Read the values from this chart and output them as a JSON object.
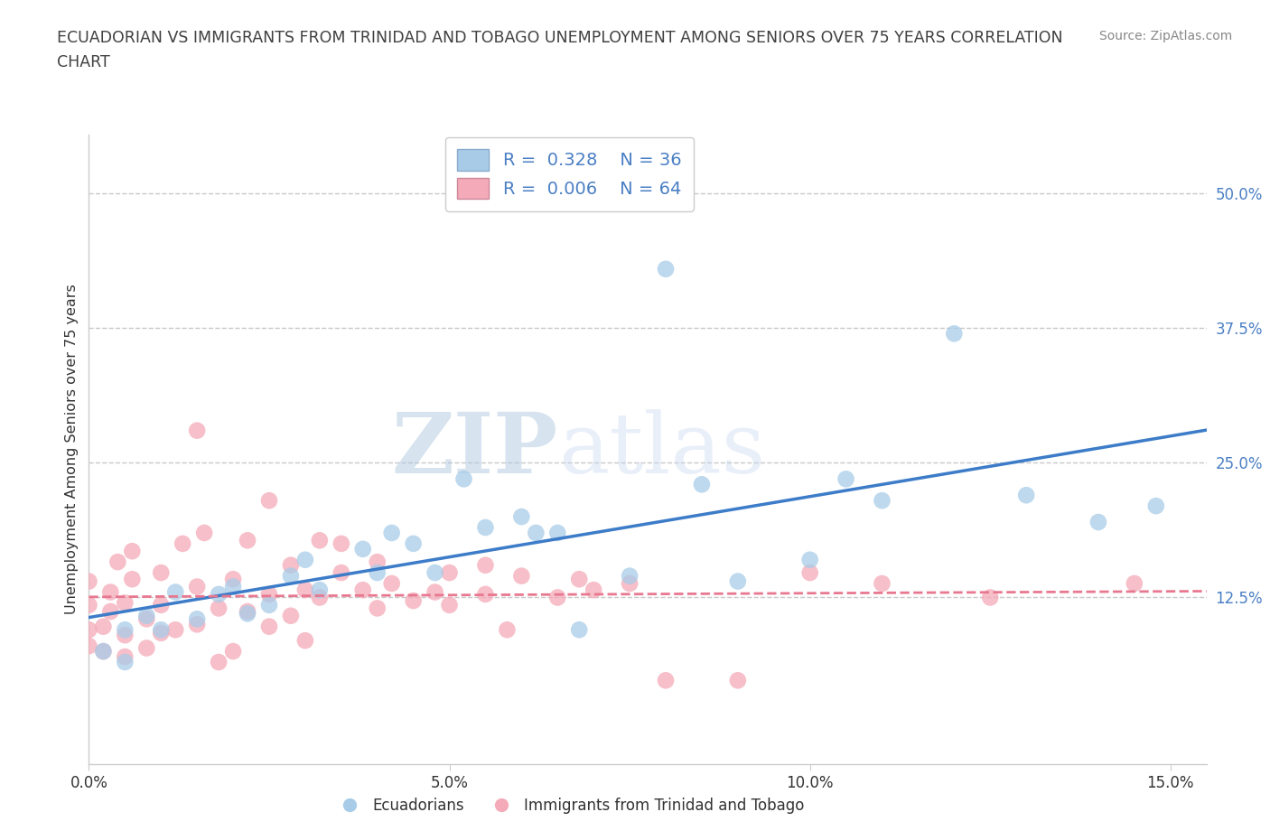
{
  "title_line1": "ECUADORIAN VS IMMIGRANTS FROM TRINIDAD AND TOBAGO UNEMPLOYMENT AMONG SENIORS OVER 75 YEARS CORRELATION",
  "title_line2": "CHART",
  "source": "Source: ZipAtlas.com",
  "ylabel": "Unemployment Among Seniors over 75 years",
  "xlim": [
    0.0,
    0.155
  ],
  "ylim": [
    -0.03,
    0.555
  ],
  "xticks": [
    0.0,
    0.05,
    0.1,
    0.15
  ],
  "xticklabels": [
    "0.0%",
    "5.0%",
    "10.0%",
    "15.0%"
  ],
  "ytick_positions": [
    0.0,
    0.125,
    0.25,
    0.375,
    0.5
  ],
  "yticklabels": [
    "",
    "12.5%",
    "25.0%",
    "37.5%",
    "50.0%"
  ],
  "hlines": [
    0.125,
    0.25,
    0.375,
    0.5
  ],
  "R_blue": 0.328,
  "N_blue": 36,
  "R_pink": 0.006,
  "N_pink": 64,
  "color_blue": "#a8cce8",
  "color_pink": "#f4aab8",
  "line_blue": "#3c7cc8",
  "line_pink": "#e87890",
  "blue_scatter_x": [
    0.002,
    0.005,
    0.005,
    0.008,
    0.01,
    0.012,
    0.015,
    0.018,
    0.02,
    0.022,
    0.025,
    0.028,
    0.03,
    0.032,
    0.038,
    0.04,
    0.042,
    0.045,
    0.048,
    0.052,
    0.055,
    0.06,
    0.062,
    0.065,
    0.068,
    0.075,
    0.08,
    0.085,
    0.09,
    0.1,
    0.105,
    0.11,
    0.12,
    0.13,
    0.14,
    0.148
  ],
  "blue_scatter_y": [
    0.075,
    0.065,
    0.095,
    0.108,
    0.095,
    0.13,
    0.105,
    0.128,
    0.135,
    0.11,
    0.118,
    0.145,
    0.16,
    0.132,
    0.17,
    0.148,
    0.185,
    0.175,
    0.148,
    0.235,
    0.19,
    0.2,
    0.185,
    0.185,
    0.095,
    0.145,
    0.43,
    0.23,
    0.14,
    0.16,
    0.235,
    0.215,
    0.37,
    0.22,
    0.195,
    0.21
  ],
  "pink_scatter_x": [
    0.0,
    0.0,
    0.0,
    0.0,
    0.002,
    0.002,
    0.003,
    0.003,
    0.004,
    0.005,
    0.005,
    0.005,
    0.006,
    0.006,
    0.008,
    0.008,
    0.01,
    0.01,
    0.01,
    0.012,
    0.013,
    0.015,
    0.015,
    0.015,
    0.016,
    0.018,
    0.018,
    0.02,
    0.02,
    0.022,
    0.022,
    0.025,
    0.025,
    0.025,
    0.028,
    0.028,
    0.03,
    0.03,
    0.032,
    0.032,
    0.035,
    0.035,
    0.038,
    0.04,
    0.04,
    0.042,
    0.045,
    0.048,
    0.05,
    0.05,
    0.055,
    0.055,
    0.058,
    0.06,
    0.065,
    0.068,
    0.07,
    0.075,
    0.08,
    0.09,
    0.1,
    0.11,
    0.125,
    0.145
  ],
  "pink_scatter_y": [
    0.08,
    0.095,
    0.118,
    0.14,
    0.075,
    0.098,
    0.112,
    0.13,
    0.158,
    0.07,
    0.09,
    0.12,
    0.142,
    0.168,
    0.078,
    0.105,
    0.092,
    0.118,
    0.148,
    0.095,
    0.175,
    0.1,
    0.135,
    0.28,
    0.185,
    0.065,
    0.115,
    0.075,
    0.142,
    0.112,
    0.178,
    0.098,
    0.128,
    0.215,
    0.108,
    0.155,
    0.085,
    0.132,
    0.125,
    0.178,
    0.148,
    0.175,
    0.132,
    0.115,
    0.158,
    0.138,
    0.122,
    0.13,
    0.148,
    0.118,
    0.128,
    0.155,
    0.095,
    0.145,
    0.125,
    0.142,
    0.132,
    0.138,
    0.048,
    0.048,
    0.148,
    0.138,
    0.125,
    0.138
  ],
  "watermark_zip": "ZIP",
  "watermark_atlas": "atlas",
  "bg_color": "#ffffff",
  "grid_color": "#c8c8c8",
  "tick_color": "#4a7fc4",
  "title_color": "#404040",
  "source_color": "#888888"
}
